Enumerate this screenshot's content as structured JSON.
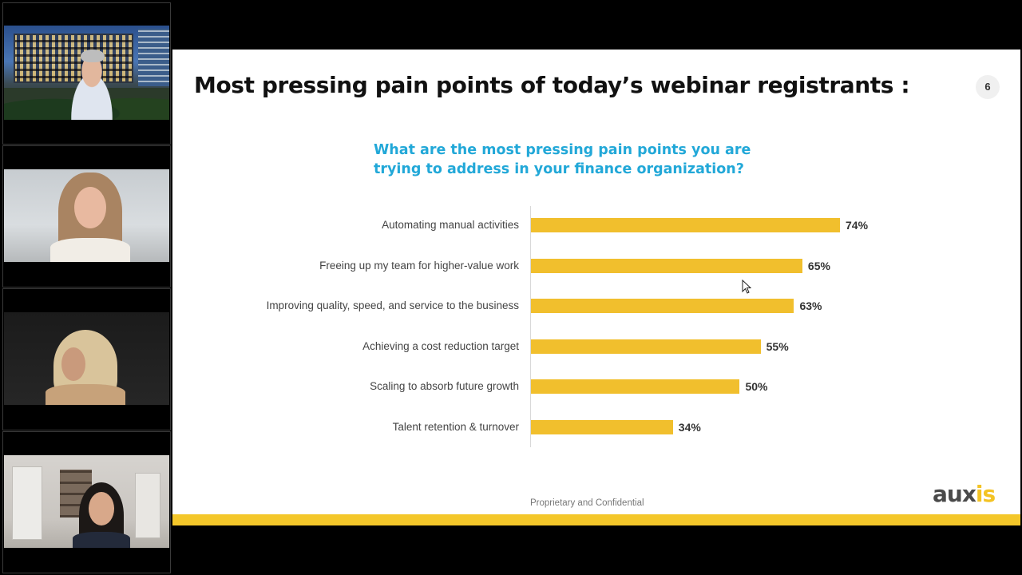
{
  "slide": {
    "title": "Most pressing pain points of today’s webinar registrants :",
    "page_number": "6",
    "question_line1": "What are the most pressing pain points you are",
    "question_line2": "trying to address in your finance organization?",
    "footer": "Proprietary and Confidential",
    "logo_part1": "aux",
    "logo_part2": "is",
    "colors": {
      "bar": "#f1bf2d",
      "question": "#22a8d8",
      "band": "#f4c72a"
    }
  },
  "chart_data": {
    "type": "bar",
    "orientation": "horizontal",
    "title": "What are the most pressing pain points you are trying to address in your finance organization?",
    "categories": [
      "Automating manual activities",
      "Freeing up my team for higher-value work",
      "Improving quality, speed, and service to the business",
      "Achieving a cost reduction target",
      "Scaling to absorb future growth",
      "Talent retention & turnover"
    ],
    "values": [
      74,
      65,
      63,
      55,
      50,
      34
    ],
    "value_labels": [
      "74%",
      "65%",
      "63%",
      "55%",
      "50%",
      "34%"
    ],
    "xlim": [
      0,
      100
    ],
    "grid": false,
    "legend": "none"
  },
  "participants": [
    {
      "icon": "video-feed-building"
    },
    {
      "icon": "video-feed-person"
    },
    {
      "icon": "video-feed-person"
    },
    {
      "icon": "video-feed-person"
    }
  ]
}
